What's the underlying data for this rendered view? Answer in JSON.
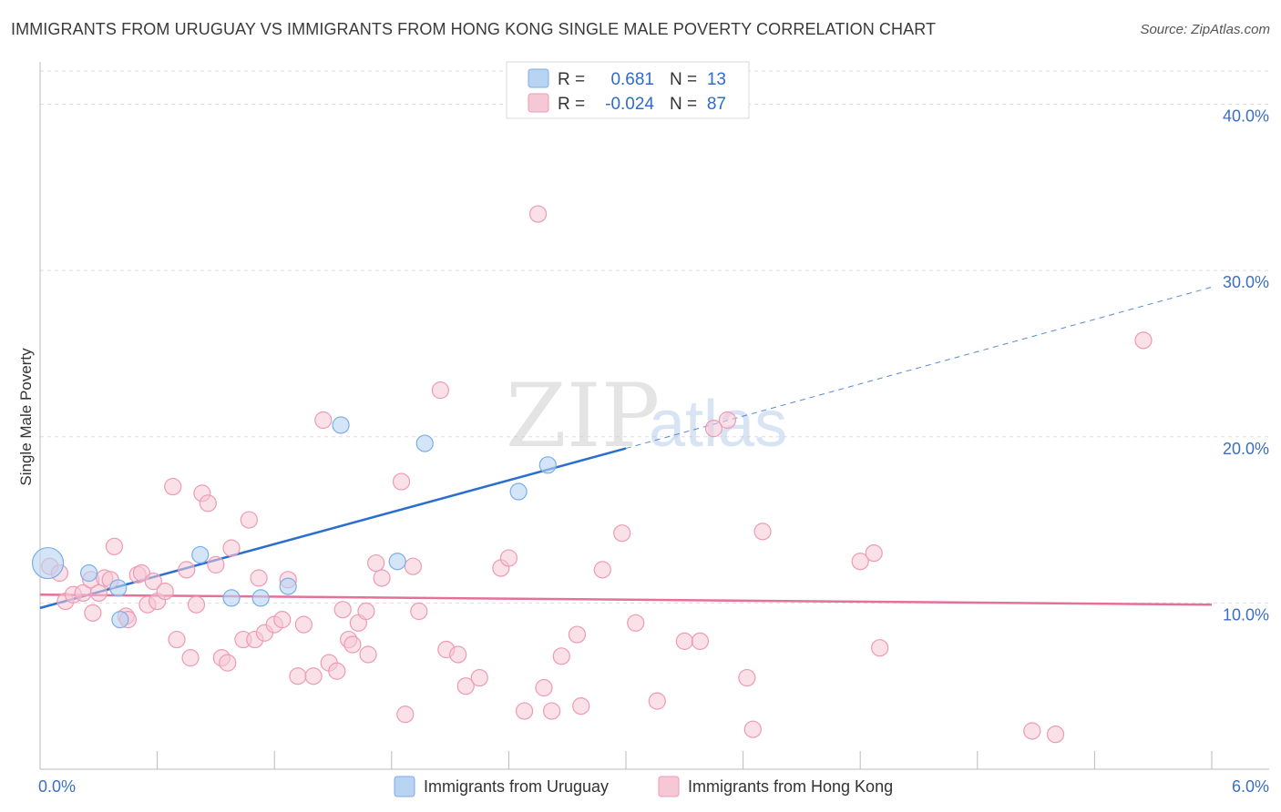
{
  "title": "IMMIGRANTS FROM URUGUAY VS IMMIGRANTS FROM HONG KONG SINGLE MALE POVERTY CORRELATION CHART",
  "source": "Source: ZipAtlas.com",
  "watermark": {
    "zip": "ZIP",
    "atlas": "atlas"
  },
  "legend_top": {
    "rows": [
      {
        "r_label": "R =",
        "r_value": "0.681",
        "n_label": "N =",
        "n_value": "13"
      },
      {
        "r_label": "R =",
        "r_value": "-0.024",
        "n_label": "N =",
        "n_value": "87"
      }
    ]
  },
  "colors": {
    "uruguay": "#7aaee8",
    "uruguay_fill": "#b9d3f3",
    "hongkong": "#ee9ab5",
    "hongkong_fill": "#f6c8d6",
    "uruguay_line": "#2a6fce",
    "hongkong_line": "#e5709a",
    "grid": "#dddddd"
  },
  "chart_data": {
    "type": "scatter",
    "title": "IMMIGRANTS FROM URUGUAY VS IMMIGRANTS FROM HONG KONG SINGLE MALE POVERTY CORRELATION CHART",
    "xlabel": "",
    "ylabel": "Single Male Poverty",
    "xlim": [
      0,
      6
    ],
    "ylim": [
      0,
      42
    ],
    "x_tick_labels": [
      "0.0%",
      "6.0%"
    ],
    "y_ticks": [
      10,
      20,
      30,
      40
    ],
    "y_tick_labels": [
      "10.0%",
      "20.0%",
      "30.0%",
      "40.0%"
    ],
    "grid": true,
    "legend_placement": "bottom",
    "series": [
      {
        "name": "Immigrants from Uruguay",
        "points": [
          [
            0.04,
            12.4
          ],
          [
            0.25,
            11.8
          ],
          [
            0.4,
            10.9
          ],
          [
            0.41,
            9.0
          ],
          [
            0.82,
            12.9
          ],
          [
            0.98,
            10.3
          ],
          [
            1.13,
            10.3
          ],
          [
            1.27,
            11.0
          ],
          [
            1.54,
            20.7
          ],
          [
            1.83,
            12.5
          ],
          [
            1.97,
            19.6
          ],
          [
            2.45,
            16.7
          ],
          [
            2.6,
            18.3
          ]
        ],
        "trend": {
          "x0": 0.0,
          "y0": 9.7,
          "x1": 3.0,
          "y1": 19.3,
          "extend_to_x": 6.0,
          "extend_y": 29.0
        }
      },
      {
        "name": "Immigrants from Hong Kong",
        "points": [
          [
            0.05,
            12.2
          ],
          [
            0.1,
            11.8
          ],
          [
            0.13,
            10.1
          ],
          [
            0.17,
            10.5
          ],
          [
            0.22,
            10.6
          ],
          [
            0.26,
            11.4
          ],
          [
            0.27,
            9.4
          ],
          [
            0.3,
            10.6
          ],
          [
            0.33,
            11.5
          ],
          [
            0.36,
            11.4
          ],
          [
            0.38,
            13.4
          ],
          [
            0.44,
            9.2
          ],
          [
            0.45,
            9.0
          ],
          [
            0.5,
            11.7
          ],
          [
            0.52,
            11.8
          ],
          [
            0.55,
            9.9
          ],
          [
            0.58,
            11.3
          ],
          [
            0.6,
            10.1
          ],
          [
            0.64,
            10.7
          ],
          [
            0.68,
            17.0
          ],
          [
            0.7,
            7.8
          ],
          [
            0.75,
            12.0
          ],
          [
            0.77,
            6.7
          ],
          [
            0.8,
            9.9
          ],
          [
            0.83,
            16.6
          ],
          [
            0.86,
            16.0
          ],
          [
            0.9,
            12.3
          ],
          [
            0.93,
            6.7
          ],
          [
            0.96,
            6.4
          ],
          [
            0.98,
            13.3
          ],
          [
            1.04,
            7.8
          ],
          [
            1.07,
            15.0
          ],
          [
            1.1,
            7.8
          ],
          [
            1.12,
            11.5
          ],
          [
            1.15,
            8.2
          ],
          [
            1.2,
            8.7
          ],
          [
            1.24,
            9.0
          ],
          [
            1.27,
            11.4
          ],
          [
            1.32,
            5.6
          ],
          [
            1.35,
            8.7
          ],
          [
            1.4,
            5.6
          ],
          [
            1.45,
            21.0
          ],
          [
            1.48,
            6.4
          ],
          [
            1.52,
            5.9
          ],
          [
            1.55,
            9.6
          ],
          [
            1.58,
            7.8
          ],
          [
            1.6,
            7.5
          ],
          [
            1.63,
            8.8
          ],
          [
            1.67,
            9.5
          ],
          [
            1.68,
            6.9
          ],
          [
            1.72,
            12.4
          ],
          [
            1.75,
            11.5
          ],
          [
            1.85,
            17.3
          ],
          [
            1.87,
            3.3
          ],
          [
            1.91,
            12.2
          ],
          [
            1.94,
            9.5
          ],
          [
            2.05,
            22.8
          ],
          [
            2.08,
            7.2
          ],
          [
            2.14,
            6.9
          ],
          [
            2.18,
            5.0
          ],
          [
            2.25,
            5.5
          ],
          [
            2.36,
            12.1
          ],
          [
            2.4,
            12.7
          ],
          [
            2.48,
            3.5
          ],
          [
            2.55,
            33.4
          ],
          [
            2.58,
            4.9
          ],
          [
            2.62,
            3.5
          ],
          [
            2.67,
            6.8
          ],
          [
            2.75,
            8.1
          ],
          [
            2.77,
            3.8
          ],
          [
            2.88,
            12.0
          ],
          [
            2.98,
            14.2
          ],
          [
            3.05,
            8.8
          ],
          [
            3.16,
            4.1
          ],
          [
            3.3,
            7.7
          ],
          [
            3.38,
            7.7
          ],
          [
            3.45,
            20.5
          ],
          [
            3.52,
            21.0
          ],
          [
            3.62,
            5.5
          ],
          [
            3.65,
            2.4
          ],
          [
            3.7,
            14.3
          ],
          [
            4.2,
            12.5
          ],
          [
            4.27,
            13.0
          ],
          [
            4.3,
            7.3
          ],
          [
            5.08,
            2.3
          ],
          [
            5.2,
            2.1
          ],
          [
            5.65,
            25.8
          ]
        ],
        "trend": {
          "x0": 0.0,
          "y0": 10.5,
          "x1": 6.0,
          "y1": 9.9
        }
      }
    ]
  }
}
